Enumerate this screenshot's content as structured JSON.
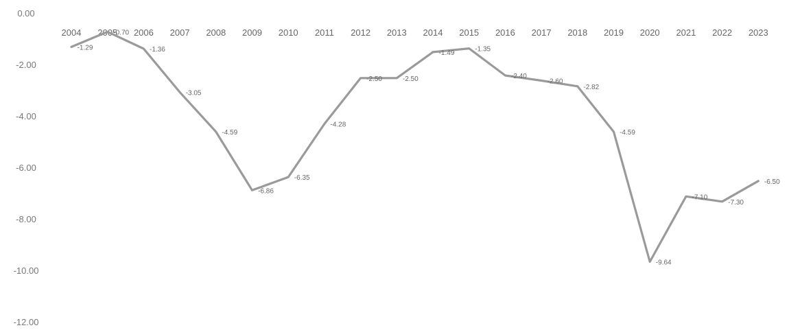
{
  "chart_data": {
    "type": "line",
    "title": "",
    "xlabel": "",
    "ylabel": "",
    "categories": [
      "2004",
      "2005",
      "2006",
      "2007",
      "2008",
      "2009",
      "2010",
      "2011",
      "2012",
      "2013",
      "2014",
      "2015",
      "2016",
      "2017",
      "2018",
      "2019",
      "2020",
      "2021",
      "2022",
      "2023"
    ],
    "yticks": [
      "0.00",
      "-2.00",
      "-4.00",
      "-6.00",
      "-8.00",
      "-10.00",
      "-12.00"
    ],
    "ylim": [
      -12,
      0
    ],
    "x_axis_position": "top",
    "grid": false,
    "line_color": "#9a9a9a",
    "series": [
      {
        "values": [
          -1.29,
          -0.7,
          -1.36,
          -3.05,
          -4.59,
          -6.86,
          -6.35,
          -4.28,
          -2.5,
          -2.5,
          -1.49,
          -1.35,
          -2.4,
          -2.6,
          -2.82,
          -4.59,
          -9.64,
          -7.1,
          -7.3,
          -6.5
        ],
        "labels": [
          "-1.29",
          "-0.70",
          "-1.36",
          "-3.05",
          "-4.59",
          "-6.86",
          "-6.35",
          "-4.28",
          "-2.50",
          "-2.50",
          "-1.49",
          "-1.35",
          "-2.40",
          "-2.60",
          "-2.82",
          "-4.59",
          "-9.64",
          "-7.10",
          "-7.30",
          "-6.50"
        ]
      }
    ]
  }
}
